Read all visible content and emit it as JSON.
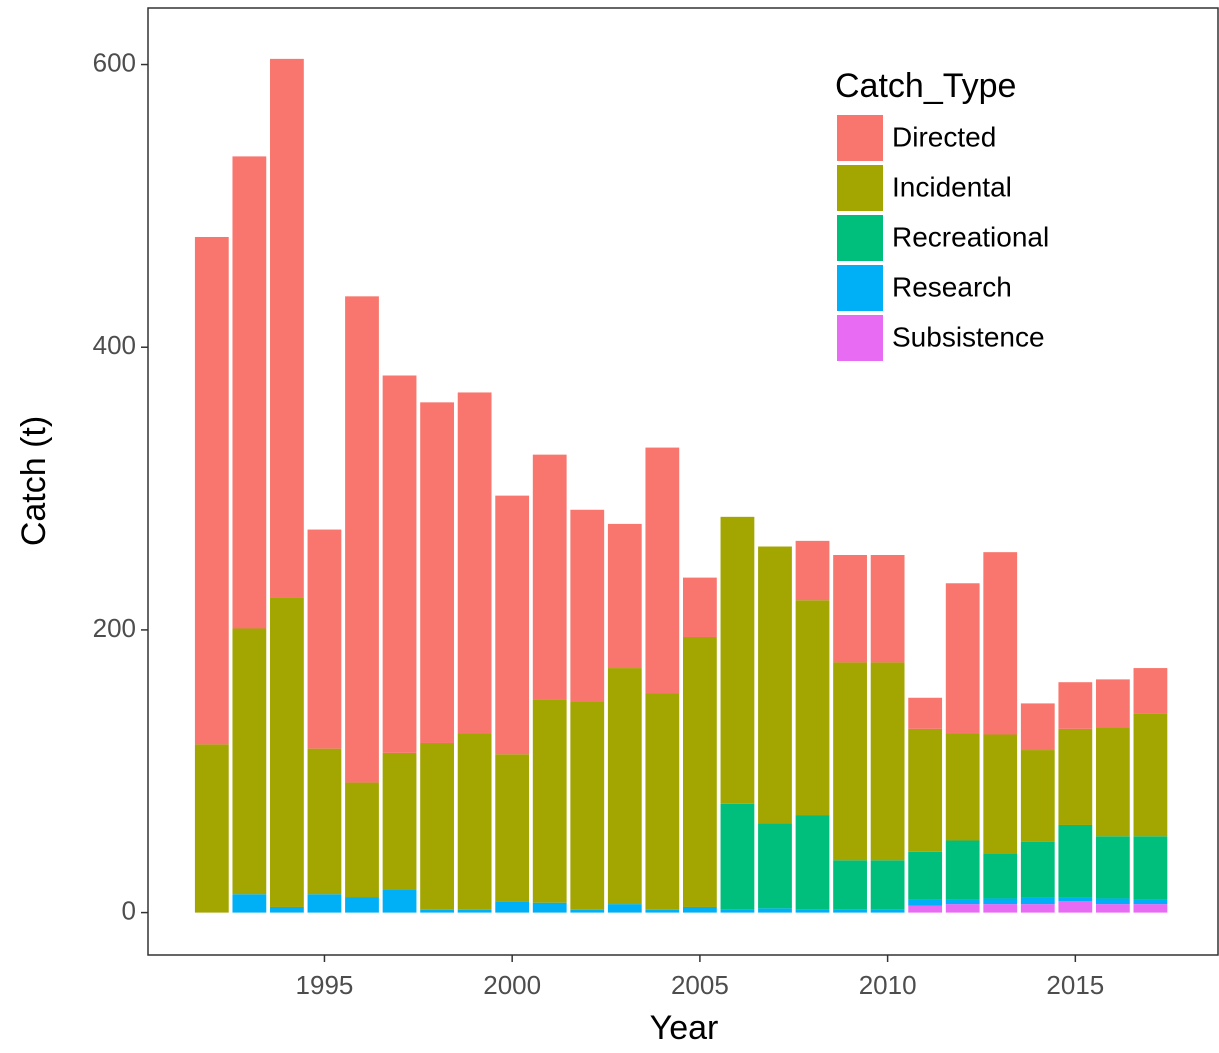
{
  "chart_data": {
    "type": "stacked_bar",
    "x_label": "Year",
    "y_label": "Catch (t)",
    "legend_title": "Catch_Type",
    "legend_position": "top-right",
    "x": [
      1992,
      1993,
      1994,
      1995,
      1996,
      1997,
      1998,
      1999,
      2000,
      2001,
      2002,
      2003,
      2004,
      2005,
      2006,
      2007,
      2008,
      2009,
      2010,
      2011,
      2012,
      2013,
      2014,
      2015,
      2016,
      2017
    ],
    "xlim": [
      1990.3,
      2018.8
    ],
    "xticks": [
      1995,
      2000,
      2005,
      2010,
      2015
    ],
    "ylim": [
      -30,
      640
    ],
    "yticks": [
      0,
      200,
      400,
      600
    ],
    "series": [
      {
        "name": "Subsistence",
        "color": "#E76BF3",
        "values": [
          0,
          0,
          0,
          0,
          0,
          0,
          0,
          0,
          0,
          0,
          0,
          0,
          0,
          0,
          0,
          0,
          0,
          0,
          0,
          5,
          6,
          6,
          6,
          8,
          6,
          6
        ]
      },
      {
        "name": "Research",
        "color": "#00B0F6",
        "values": [
          0,
          13,
          4,
          13,
          11,
          16,
          2,
          2,
          8,
          7,
          2,
          6,
          2,
          4,
          2,
          3,
          2,
          2,
          2,
          4,
          3,
          4,
          5,
          3,
          4,
          3
        ]
      },
      {
        "name": "Recreational",
        "color": "#00BF7D",
        "values": [
          0,
          0,
          0,
          0,
          0,
          0,
          0,
          0,
          0,
          0,
          0,
          0,
          0,
          0,
          75,
          60,
          67,
          35,
          35,
          34,
          42,
          32,
          39,
          51,
          44,
          45
        ]
      },
      {
        "name": "Incidental",
        "color": "#A3A500",
        "values": [
          119,
          188,
          219,
          103,
          81,
          97,
          118,
          125,
          104,
          144,
          147,
          167,
          153,
          191,
          203,
          196,
          152,
          140,
          140,
          87,
          76,
          84,
          65,
          68,
          77,
          87
        ]
      },
      {
        "name": "Directed",
        "color": "#F8766D",
        "values": [
          359,
          334,
          381,
          155,
          344,
          267,
          241,
          241,
          183,
          173,
          136,
          102,
          174,
          42,
          0,
          0,
          42,
          76,
          76,
          22,
          106,
          129,
          33,
          33,
          34,
          32
        ]
      }
    ]
  }
}
